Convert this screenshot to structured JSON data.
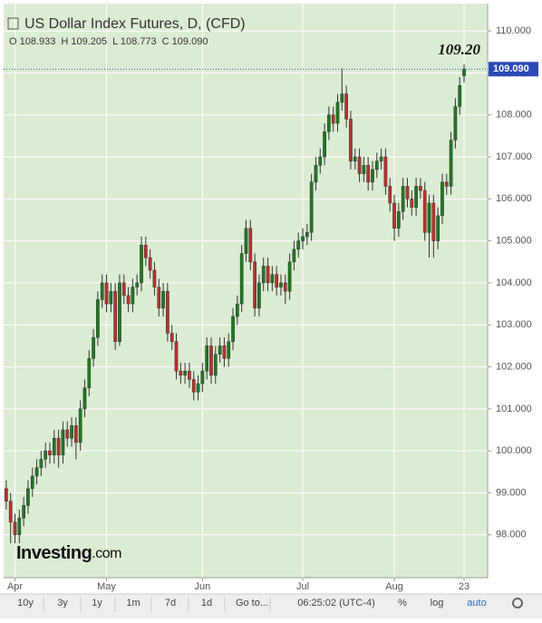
{
  "chart_data": {
    "type": "candlestick",
    "title": "US Dollar Index Futures, D, (CFD)",
    "ohlc_header": [
      "O 108.933",
      "H 109.205",
      "L 108.773",
      "C 109.090"
    ],
    "open": [
      99.1,
      98.8,
      98.3,
      98.0,
      98.4,
      98.7,
      99.1,
      99.4,
      99.6,
      99.8,
      100.0,
      99.9,
      100.3,
      99.9,
      100.5,
      100.3,
      100.6,
      100.2,
      101.0,
      101.5,
      102.2,
      102.7,
      103.6,
      104.0,
      103.5,
      103.8,
      102.6,
      104.0,
      103.7,
      103.5,
      103.9,
      104.0,
      104.9,
      104.6,
      104.3,
      103.9,
      103.4,
      103.8,
      102.8,
      102.6,
      101.9,
      101.8,
      101.9,
      101.7,
      101.4,
      101.6,
      101.9,
      102.5,
      101.8,
      102.3,
      102.5,
      102.2,
      102.6,
      103.2,
      103.5,
      104.7,
      105.3,
      104.5,
      103.4,
      104.0,
      104.4,
      104.0,
      104.2,
      103.9,
      104.0,
      103.8,
      104.5,
      104.8,
      105.0,
      105.1,
      105.2,
      106.4,
      106.8,
      107.0,
      107.6,
      108.0,
      107.8,
      108.3,
      108.5,
      107.9,
      106.9,
      107.0,
      106.6,
      106.8,
      106.4,
      106.7,
      106.9,
      107.0,
      106.3,
      105.9,
      105.3,
      105.7,
      106.3,
      106.0,
      105.8,
      106.3,
      106.2,
      105.2,
      105.9,
      105.0,
      105.6,
      106.4,
      106.3,
      107.4,
      108.2,
      108.933
    ],
    "high": [
      99.3,
      99.0,
      98.5,
      98.6,
      98.9,
      99.3,
      99.6,
      99.8,
      100.0,
      100.2,
      100.2,
      100.5,
      100.5,
      100.7,
      100.7,
      100.8,
      100.8,
      101.2,
      101.7,
      102.4,
      102.9,
      103.8,
      104.2,
      104.2,
      104.0,
      104.0,
      104.2,
      104.2,
      103.9,
      104.1,
      104.2,
      105.1,
      105.1,
      104.8,
      104.5,
      104.1,
      104.0,
      104.0,
      103.0,
      102.8,
      102.1,
      102.1,
      102.1,
      101.9,
      101.8,
      102.1,
      102.7,
      102.7,
      102.5,
      102.7,
      102.7,
      102.8,
      103.4,
      103.7,
      104.9,
      105.5,
      105.5,
      104.7,
      104.2,
      104.6,
      104.6,
      104.4,
      104.4,
      104.2,
      104.2,
      104.7,
      105.0,
      105.2,
      105.3,
      105.4,
      106.6,
      107.0,
      107.2,
      107.8,
      108.2,
      108.2,
      108.5,
      109.1,
      108.7,
      108.1,
      107.2,
      107.2,
      107.0,
      107.0,
      106.9,
      107.1,
      107.2,
      107.2,
      106.5,
      106.1,
      105.9,
      106.5,
      106.5,
      106.2,
      106.5,
      106.5,
      106.4,
      106.1,
      106.1,
      105.8,
      106.6,
      106.6,
      107.6,
      108.4,
      108.9,
      109.205
    ],
    "low": [
      98.6,
      97.8,
      97.8,
      97.8,
      98.2,
      98.5,
      98.9,
      99.2,
      99.4,
      99.6,
      99.7,
      99.7,
      99.6,
      99.7,
      100.1,
      100.1,
      99.8,
      100.0,
      100.8,
      101.3,
      102.0,
      102.5,
      103.4,
      103.3,
      103.3,
      102.4,
      102.5,
      103.5,
      103.3,
      103.3,
      103.7,
      103.8,
      104.4,
      104.1,
      103.7,
      103.2,
      103.2,
      102.6,
      102.4,
      101.7,
      101.6,
      101.6,
      101.5,
      101.2,
      101.2,
      101.4,
      101.7,
      101.6,
      101.6,
      102.1,
      102.0,
      102.0,
      102.4,
      103.0,
      103.3,
      104.5,
      104.3,
      103.2,
      103.2,
      103.8,
      103.8,
      103.8,
      103.7,
      103.7,
      103.5,
      103.6,
      104.3,
      104.6,
      104.8,
      104.9,
      105.0,
      106.2,
      106.6,
      106.8,
      107.4,
      107.6,
      107.6,
      108.1,
      107.7,
      106.7,
      106.7,
      106.4,
      106.4,
      106.2,
      106.2,
      106.5,
      106.7,
      106.1,
      105.7,
      105.0,
      105.1,
      105.5,
      105.8,
      105.6,
      105.6,
      106.0,
      105.0,
      104.6,
      104.6,
      104.8,
      105.4,
      106.1,
      106.1,
      107.2,
      108.0,
      108.773
    ],
    "close": [
      98.8,
      98.3,
      98.0,
      98.4,
      98.7,
      99.1,
      99.4,
      99.6,
      99.8,
      100.0,
      99.9,
      100.3,
      99.9,
      100.5,
      100.3,
      100.6,
      100.2,
      101.0,
      101.5,
      102.2,
      102.7,
      103.6,
      104.0,
      103.5,
      103.8,
      102.6,
      104.0,
      103.7,
      103.5,
      103.9,
      104.0,
      104.9,
      104.6,
      104.3,
      103.9,
      103.4,
      103.8,
      102.8,
      102.6,
      101.9,
      101.8,
      101.9,
      101.7,
      101.4,
      101.6,
      101.9,
      102.5,
      101.8,
      102.3,
      102.5,
      102.2,
      102.6,
      103.2,
      103.5,
      104.7,
      105.3,
      104.5,
      103.4,
      104.0,
      104.4,
      104.0,
      104.2,
      103.9,
      104.0,
      103.8,
      104.5,
      104.8,
      105.0,
      105.1,
      105.2,
      106.4,
      106.8,
      107.0,
      107.6,
      108.0,
      107.8,
      108.3,
      108.5,
      107.9,
      106.9,
      107.0,
      106.6,
      106.8,
      106.4,
      106.7,
      106.9,
      107.0,
      106.3,
      105.9,
      105.3,
      105.7,
      106.3,
      106.0,
      105.8,
      106.3,
      106.2,
      105.2,
      105.9,
      105.0,
      105.6,
      106.4,
      106.3,
      107.4,
      108.2,
      108.7,
      109.09
    ],
    "up_color": "#1f7a1f",
    "down_color": "#c0302a",
    "ylim": [
      96.98,
      110.65
    ],
    "yticks": [
      {
        "value": 98,
        "label": "98.000"
      },
      {
        "value": 99,
        "label": "99.000"
      },
      {
        "value": 100,
        "label": "100.000"
      },
      {
        "value": 101,
        "label": "101.000"
      },
      {
        "value": 102,
        "label": "102.000"
      },
      {
        "value": 103,
        "label": "103.000"
      },
      {
        "value": 104,
        "label": "104.000"
      },
      {
        "value": 105,
        "label": "105.000"
      },
      {
        "value": 106,
        "label": "106.000"
      },
      {
        "value": 107,
        "label": "107.000"
      },
      {
        "value": 108,
        "label": "108.000"
      },
      {
        "value": 109,
        "label": "109.000"
      },
      {
        "value": 110,
        "label": "110.000"
      }
    ],
    "xlim": [
      -0.6,
      110.4
    ],
    "xticks": [
      {
        "value": 2,
        "label": "Apr"
      },
      {
        "value": 23,
        "label": "May"
      },
      {
        "value": 45,
        "label": "Jun"
      },
      {
        "value": 68,
        "label": "Jul"
      },
      {
        "value": 89,
        "label": "Aug"
      },
      {
        "value": 105,
        "label": "23"
      }
    ],
    "grid": true,
    "last_price": {
      "value": 109.09,
      "label": "109.090"
    },
    "annotation": {
      "value": 109.2,
      "label": "109.20"
    },
    "logo": {
      "brand": "Investing",
      "suffix": ".com"
    },
    "toolbar": {
      "ranges": [
        "10y",
        "3y",
        "1y",
        "1m",
        "7d",
        "1d",
        "Go to..."
      ],
      "clock": "06:25:02 (UTC-4)",
      "options": [
        "%",
        "log",
        "auto"
      ]
    }
  }
}
